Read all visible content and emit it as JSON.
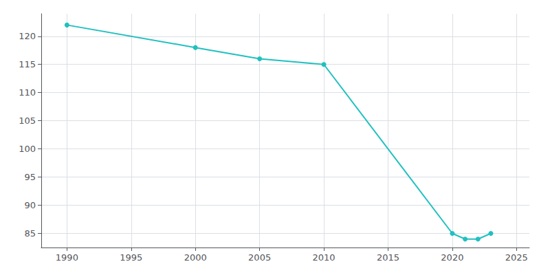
{
  "chart_data": {
    "type": "line",
    "x": [
      1990,
      2000,
      2005,
      2010,
      2020,
      2021,
      2022,
      2023
    ],
    "values": [
      122,
      118,
      116,
      115,
      85,
      84,
      84,
      85
    ],
    "color": "#20c0c0",
    "marker": "circle",
    "xlim": [
      1988,
      2026
    ],
    "ylim": [
      82.5,
      124
    ],
    "xticks": [
      1990,
      1995,
      2000,
      2005,
      2010,
      2015,
      2020,
      2025
    ],
    "yticks": [
      85,
      90,
      95,
      100,
      105,
      110,
      115,
      120
    ],
    "grid": true
  }
}
